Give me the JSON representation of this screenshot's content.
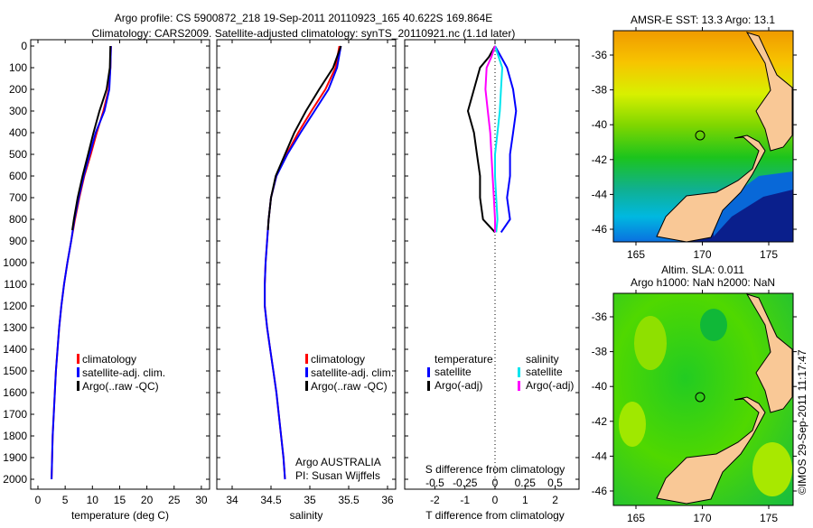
{
  "title_line1": "Argo profile: CS 5900872_218 19-Sep-2011 20110923_165 40.622S 169.864E",
  "title_line2": "Climatology: CARS2009. Satellite-adjusted climatology: synTS_20110921.nc (1.1d later)",
  "copyright": "©IMOS 29-Sep-2011 11:17:47",
  "colors": {
    "climatology": "#ff0000",
    "satellite": "#0000ff",
    "argo": "#000000",
    "sal_satellite": "#00e5ee",
    "sal_argo": "#ff00ff",
    "land": "#f9c896"
  },
  "chart_data": [
    {
      "type": "line",
      "id": "temperature",
      "xlabel": "temperature (deg C)",
      "ylabel": "",
      "xlim": [
        -1,
        31.5
      ],
      "ylim": [
        2000,
        0
      ],
      "xticks": [
        "0",
        "5",
        "10",
        "15",
        "20",
        "25",
        "30"
      ],
      "yticks": [
        "0",
        "100",
        "200",
        "300",
        "400",
        "500",
        "600",
        "700",
        "800",
        "900",
        "1000",
        "1100",
        "1200",
        "1300",
        "1400",
        "1500",
        "1600",
        "1700",
        "1800",
        "1900",
        "2000"
      ],
      "legend": [
        "climatology",
        "satellite-adj. clim.",
        "Argo(..raw -QC)"
      ],
      "depth": [
        0,
        100,
        200,
        300,
        400,
        500,
        600,
        700,
        800,
        900,
        1000,
        1100,
        1200,
        1300,
        1400,
        1500,
        1600,
        1700,
        1800,
        1900,
        2000
      ],
      "series": [
        {
          "name": "climatology",
          "values": [
            13.4,
            13.3,
            13.0,
            12.0,
            10.8,
            9.7,
            8.5,
            7.6,
            6.8,
            6.1,
            5.4,
            4.8,
            4.3,
            3.9,
            3.6,
            3.3,
            3.1,
            2.9,
            2.7,
            2.6,
            2.5
          ]
        },
        {
          "name": "satellite-adj. clim.",
          "values": [
            13.4,
            13.3,
            13.1,
            12.2,
            10.6,
            9.5,
            8.4,
            7.5,
            6.7,
            6.1,
            5.4,
            4.8,
            4.3,
            3.9,
            3.6,
            3.3,
            3.1,
            2.9,
            2.7,
            2.6,
            2.5
          ]
        },
        {
          "name": "Argo(..raw -QC)",
          "depth": [
            0,
            100,
            200,
            300,
            400,
            500,
            600,
            700,
            800,
            850
          ],
          "values": [
            13.3,
            13.2,
            12.6,
            11.3,
            10.2,
            9.2,
            8.2,
            7.3,
            6.6,
            6.3
          ]
        }
      ]
    },
    {
      "type": "line",
      "id": "salinity",
      "xlabel": "salinity",
      "xlim": [
        33.9,
        36.05
      ],
      "ylim": [
        2000,
        0
      ],
      "xticks": [
        "34",
        "34.5",
        "35",
        "35.5",
        "36"
      ],
      "legend": [
        "climatology",
        "satellite-adj. clim.",
        "Argo(..raw -QC)"
      ],
      "annotation": [
        "Argo AUSTRALIA",
        "PI: Susan Wijffels"
      ],
      "depth": [
        0,
        100,
        200,
        300,
        400,
        500,
        600,
        700,
        800,
        900,
        1000,
        1100,
        1200,
        1300,
        1400,
        1500,
        1600,
        1700,
        1800,
        1900,
        2000
      ],
      "series": [
        {
          "name": "climatology",
          "values": [
            35.38,
            35.33,
            35.2,
            35.02,
            34.85,
            34.7,
            34.57,
            34.5,
            34.47,
            34.45,
            34.43,
            34.42,
            34.42,
            34.45,
            34.49,
            34.53,
            34.57,
            34.6,
            34.63,
            34.66,
            34.68
          ]
        },
        {
          "name": "satellite-adj. clim.",
          "values": [
            35.4,
            35.35,
            35.24,
            35.06,
            34.88,
            34.71,
            34.57,
            34.5,
            34.47,
            34.45,
            34.43,
            34.42,
            34.42,
            34.45,
            34.49,
            34.53,
            34.57,
            34.6,
            34.63,
            34.66,
            34.68
          ]
        },
        {
          "name": "Argo(..raw -QC)",
          "depth": [
            0,
            100,
            200,
            300,
            400,
            500,
            600,
            700,
            800,
            850
          ],
          "values": [
            35.4,
            35.3,
            35.12,
            34.95,
            34.8,
            34.68,
            34.56,
            34.5,
            34.47,
            34.46
          ]
        }
      ]
    },
    {
      "type": "line",
      "id": "differences",
      "xlabel": "T difference from climatology",
      "x2label": "S difference from climatology",
      "xlim": [
        -3,
        3
      ],
      "x2lim": [
        -0.75,
        0.75
      ],
      "ylim": [
        2000,
        0
      ],
      "xticks": [
        "-2",
        "-1",
        "0",
        "1",
        "2"
      ],
      "x2ticks": [
        "-0.5",
        "-0.25",
        "0",
        "0.25",
        "0.5"
      ],
      "legend_headers": [
        "temperature",
        "salinity"
      ],
      "legend": [
        "satellite",
        "Argo(-adj)",
        "satellite",
        "Argo(-adj)"
      ],
      "depth": [
        0,
        50,
        100,
        200,
        300,
        400,
        500,
        600,
        700,
        800,
        860
      ],
      "series": [
        {
          "name": "T satellite",
          "axis": "T",
          "values": [
            0,
            0.2,
            0.4,
            0.6,
            0.7,
            0.6,
            0.5,
            0.5,
            0.4,
            0.5,
            0.2
          ]
        },
        {
          "name": "T Argo(-adj)",
          "axis": "T",
          "values": [
            0,
            -0.2,
            -0.5,
            -0.7,
            -0.9,
            -0.7,
            -0.6,
            -0.5,
            -0.5,
            -0.4,
            0
          ]
        },
        {
          "name": "S satellite",
          "axis": "S",
          "values": [
            0,
            0.03,
            0.06,
            0.05,
            0.04,
            0.02,
            0.0,
            0.0,
            0.01,
            0.02,
            0.01
          ]
        },
        {
          "name": "S Argo(-adj)",
          "axis": "S",
          "values": [
            0,
            -0.03,
            -0.07,
            -0.08,
            -0.06,
            -0.04,
            -0.03,
            -0.02,
            -0.01,
            0,
            0
          ]
        }
      ]
    },
    {
      "type": "heatmap",
      "id": "sst-map",
      "title": "AMSR-E SST: 13.3 Argo: 13.1",
      "xticks": [
        "165",
        "170",
        "175"
      ],
      "yticks": [
        "-36",
        "-38",
        "-40",
        "-42",
        "-44",
        "-46"
      ],
      "argo_position": {
        "lon": 169.864,
        "lat": -40.622
      }
    },
    {
      "type": "heatmap",
      "id": "sla-map",
      "title": [
        "Altim. SLA: 0.011",
        "Argo h1000: NaN h2000: NaN"
      ],
      "xticks": [
        "165",
        "170",
        "175"
      ],
      "yticks": [
        "-36",
        "-38",
        "-40",
        "-42",
        "-44",
        "-46"
      ],
      "argo_position": {
        "lon": 169.864,
        "lat": -40.622
      }
    }
  ]
}
